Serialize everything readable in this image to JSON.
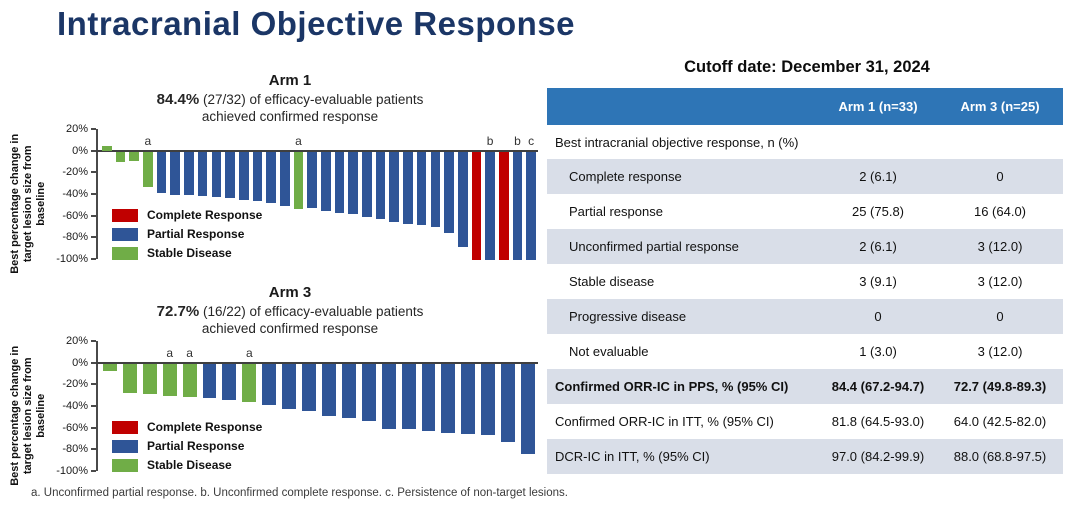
{
  "page": {
    "title": "Intracranial Objective Response"
  },
  "cutoff_title": "Cutoff date: December 31, 2024",
  "footnote": "a. Unconfirmed partial response. b. Unconfirmed complete response. c. Persistence of non-target lesions.",
  "colors": {
    "title_navy": "#1b3666",
    "highlight_orange": "#ed7d31",
    "complete_response_red": "#c00000",
    "partial_response_blue": "#2f5597",
    "stable_disease_green": "#70ad47",
    "table_header_blue": "#2e75b6",
    "table_stripe_gray": "#d9dee8"
  },
  "chart_data": [
    {
      "type": "bar",
      "title": "Arm 1",
      "headline_pct": "84.4%",
      "headline_rest": " (27/32) of efficacy-evaluable patients",
      "headline_line2": "achieved confirmed response",
      "ylabel": "Best percentage change in\ntarget lesion size from\nbaseline",
      "ylim": [
        -100,
        20
      ],
      "yticks": [
        {
          "label": "20%",
          "v": 20
        },
        {
          "label": "0%",
          "v": 0
        },
        {
          "label": "-20%",
          "v": -20
        },
        {
          "label": "-40%",
          "v": -40
        },
        {
          "label": "-60%",
          "v": -60
        },
        {
          "label": "-80%",
          "v": -80
        },
        {
          "label": "-100%",
          "v": -100
        }
      ],
      "legend": [
        {
          "label": "Complete Response",
          "color_key": "complete_response_red"
        },
        {
          "label": "Partial Response",
          "color_key": "partial_response_blue"
        },
        {
          "label": "Stable Disease",
          "color_key": "stable_disease_green"
        }
      ],
      "bars": [
        {
          "v": 4,
          "c": "green"
        },
        {
          "v": -10,
          "c": "green"
        },
        {
          "v": -9,
          "c": "green"
        },
        {
          "v": -33,
          "c": "green",
          "m": "a"
        },
        {
          "v": -38,
          "c": "blue"
        },
        {
          "v": -40,
          "c": "blue"
        },
        {
          "v": -40,
          "c": "blue"
        },
        {
          "v": -41,
          "c": "blue"
        },
        {
          "v": -42,
          "c": "blue"
        },
        {
          "v": -43,
          "c": "blue"
        },
        {
          "v": -45,
          "c": "blue"
        },
        {
          "v": -46,
          "c": "blue"
        },
        {
          "v": -47,
          "c": "blue"
        },
        {
          "v": -50,
          "c": "blue"
        },
        {
          "v": -53,
          "c": "green",
          "m": "a"
        },
        {
          "v": -52,
          "c": "blue"
        },
        {
          "v": -55,
          "c": "blue"
        },
        {
          "v": -57,
          "c": "blue"
        },
        {
          "v": -58,
          "c": "blue"
        },
        {
          "v": -60,
          "c": "blue"
        },
        {
          "v": -62,
          "c": "blue"
        },
        {
          "v": -65,
          "c": "blue"
        },
        {
          "v": -67,
          "c": "blue"
        },
        {
          "v": -68,
          "c": "blue"
        },
        {
          "v": -70,
          "c": "blue"
        },
        {
          "v": -75,
          "c": "blue"
        },
        {
          "v": -88,
          "c": "blue"
        },
        {
          "v": -100,
          "c": "red"
        },
        {
          "v": -100,
          "c": "blue",
          "m": "b"
        },
        {
          "v": -100,
          "c": "red"
        },
        {
          "v": -100,
          "c": "blue",
          "m": "b"
        },
        {
          "v": -100,
          "c": "blue",
          "m": "c"
        }
      ]
    },
    {
      "type": "bar",
      "title": "Arm 3",
      "headline_pct": "72.7%",
      "headline_rest": " (16/22) of efficacy-evaluable patients",
      "headline_line2": "achieved confirmed response",
      "ylabel": "Best percentage change in\ntarget lesion size from\nbaseline",
      "ylim": [
        -100,
        20
      ],
      "yticks": [
        {
          "label": "20%",
          "v": 20
        },
        {
          "label": "0%",
          "v": 0
        },
        {
          "label": "-20%",
          "v": -20
        },
        {
          "label": "-40%",
          "v": -40
        },
        {
          "label": "-60%",
          "v": -60
        },
        {
          "label": "-80%",
          "v": -80
        },
        {
          "label": "-100%",
          "v": -100
        }
      ],
      "legend": [
        {
          "label": "Complete Response",
          "color_key": "complete_response_red"
        },
        {
          "label": "Partial Response",
          "color_key": "partial_response_blue"
        },
        {
          "label": "Stable Disease",
          "color_key": "stable_disease_green"
        }
      ],
      "bars": [
        {
          "v": -7,
          "c": "green"
        },
        {
          "v": -27,
          "c": "green"
        },
        {
          "v": -28,
          "c": "green"
        },
        {
          "v": -30,
          "c": "green",
          "m": "a"
        },
        {
          "v": -31,
          "c": "green",
          "m": "a"
        },
        {
          "v": -32,
          "c": "blue"
        },
        {
          "v": -34,
          "c": "blue"
        },
        {
          "v": -35,
          "c": "green",
          "m": "a"
        },
        {
          "v": -38,
          "c": "blue"
        },
        {
          "v": -42,
          "c": "blue"
        },
        {
          "v": -44,
          "c": "blue"
        },
        {
          "v": -48,
          "c": "blue"
        },
        {
          "v": -50,
          "c": "blue"
        },
        {
          "v": -53,
          "c": "blue"
        },
        {
          "v": -60,
          "c": "blue"
        },
        {
          "v": -60,
          "c": "blue"
        },
        {
          "v": -62,
          "c": "blue"
        },
        {
          "v": -64,
          "c": "blue"
        },
        {
          "v": -65,
          "c": "blue"
        },
        {
          "v": -66,
          "c": "blue"
        },
        {
          "v": -72,
          "c": "blue"
        },
        {
          "v": -83,
          "c": "blue"
        }
      ]
    }
  ],
  "table": {
    "columns": [
      "",
      "Arm 1 (n=33)",
      "Arm 3 (n=25)"
    ],
    "section_header": "Best intracranial objective response, n (%)",
    "rows": [
      {
        "label": "Complete response",
        "arm1": "2 (6.1)",
        "arm3": "0",
        "indent": true
      },
      {
        "label": "Partial response",
        "arm1": "25 (75.8)",
        "arm3": "16 (64.0)",
        "indent": true
      },
      {
        "label": "Unconfirmed partial response",
        "arm1": "2 (6.1)",
        "arm3": "3 (12.0)",
        "indent": true
      },
      {
        "label": "Stable disease",
        "arm1": "3 (9.1)",
        "arm3": "3 (12.0)",
        "indent": true
      },
      {
        "label": "Progressive disease",
        "arm1": "0",
        "arm3": "0",
        "indent": true
      },
      {
        "label": "Not evaluable",
        "arm1": "1 (3.0)",
        "arm3": "3 (12.0)",
        "indent": true
      },
      {
        "label": "Confirmed ORR-IC in PPS, % (95% CI)",
        "arm1": "84.4 (67.2-94.7)",
        "arm3": "72.7 (49.8-89.3)",
        "bold": true
      },
      {
        "label": "Confirmed ORR-IC in ITT, % (95% CI)",
        "arm1": "81.8 (64.5-93.0)",
        "arm3": "64.0 (42.5-82.0)"
      },
      {
        "label": "DCR-IC in ITT, % (95% CI)",
        "arm1": "97.0 (84.2-99.9)",
        "arm3": "88.0 (68.8-97.5)"
      }
    ]
  }
}
